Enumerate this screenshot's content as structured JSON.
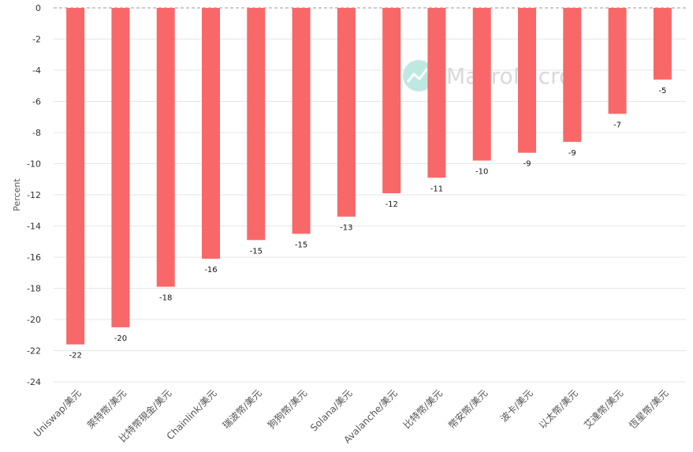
{
  "watermark": "MacroMicro",
  "chart_data": {
    "type": "bar",
    "ylabel": "Percent",
    "ylim": [
      -24,
      0
    ],
    "yticks": [
      0,
      -2,
      -4,
      -6,
      -8,
      -10,
      -12,
      -14,
      -16,
      -18,
      -20,
      -22,
      -24
    ],
    "grid": true,
    "categories": [
      "Uniswap/美元",
      "萊特幣/美元",
      "比特幣現金/美元",
      "Chainlink/美元",
      "瑞波幣/美元",
      "狗狗幣/美元",
      "Solana/美元",
      "Avalanche/美元",
      "比特幣/美元",
      "幣安幣/美元",
      "波卡/美元",
      "以太幣/美元",
      "艾達幣/美元",
      "恆星幣/美元"
    ],
    "values": [
      -21.6,
      -20.5,
      -17.9,
      -16.1,
      -14.9,
      -14.5,
      -13.4,
      -11.9,
      -10.9,
      -9.8,
      -9.3,
      -8.6,
      -6.8,
      -4.6
    ],
    "data_labels": [
      "-22",
      "-20",
      "-18",
      "-16",
      "-15",
      "-15",
      "-13",
      "-12",
      "-11",
      "-10",
      "-9",
      "-9",
      "-7",
      "-5"
    ],
    "colors": {
      "bar": "#f86868",
      "grid": "#e6e6e6",
      "zero_line": "#999999",
      "watermark_icon": "#bfe9e0"
    }
  }
}
